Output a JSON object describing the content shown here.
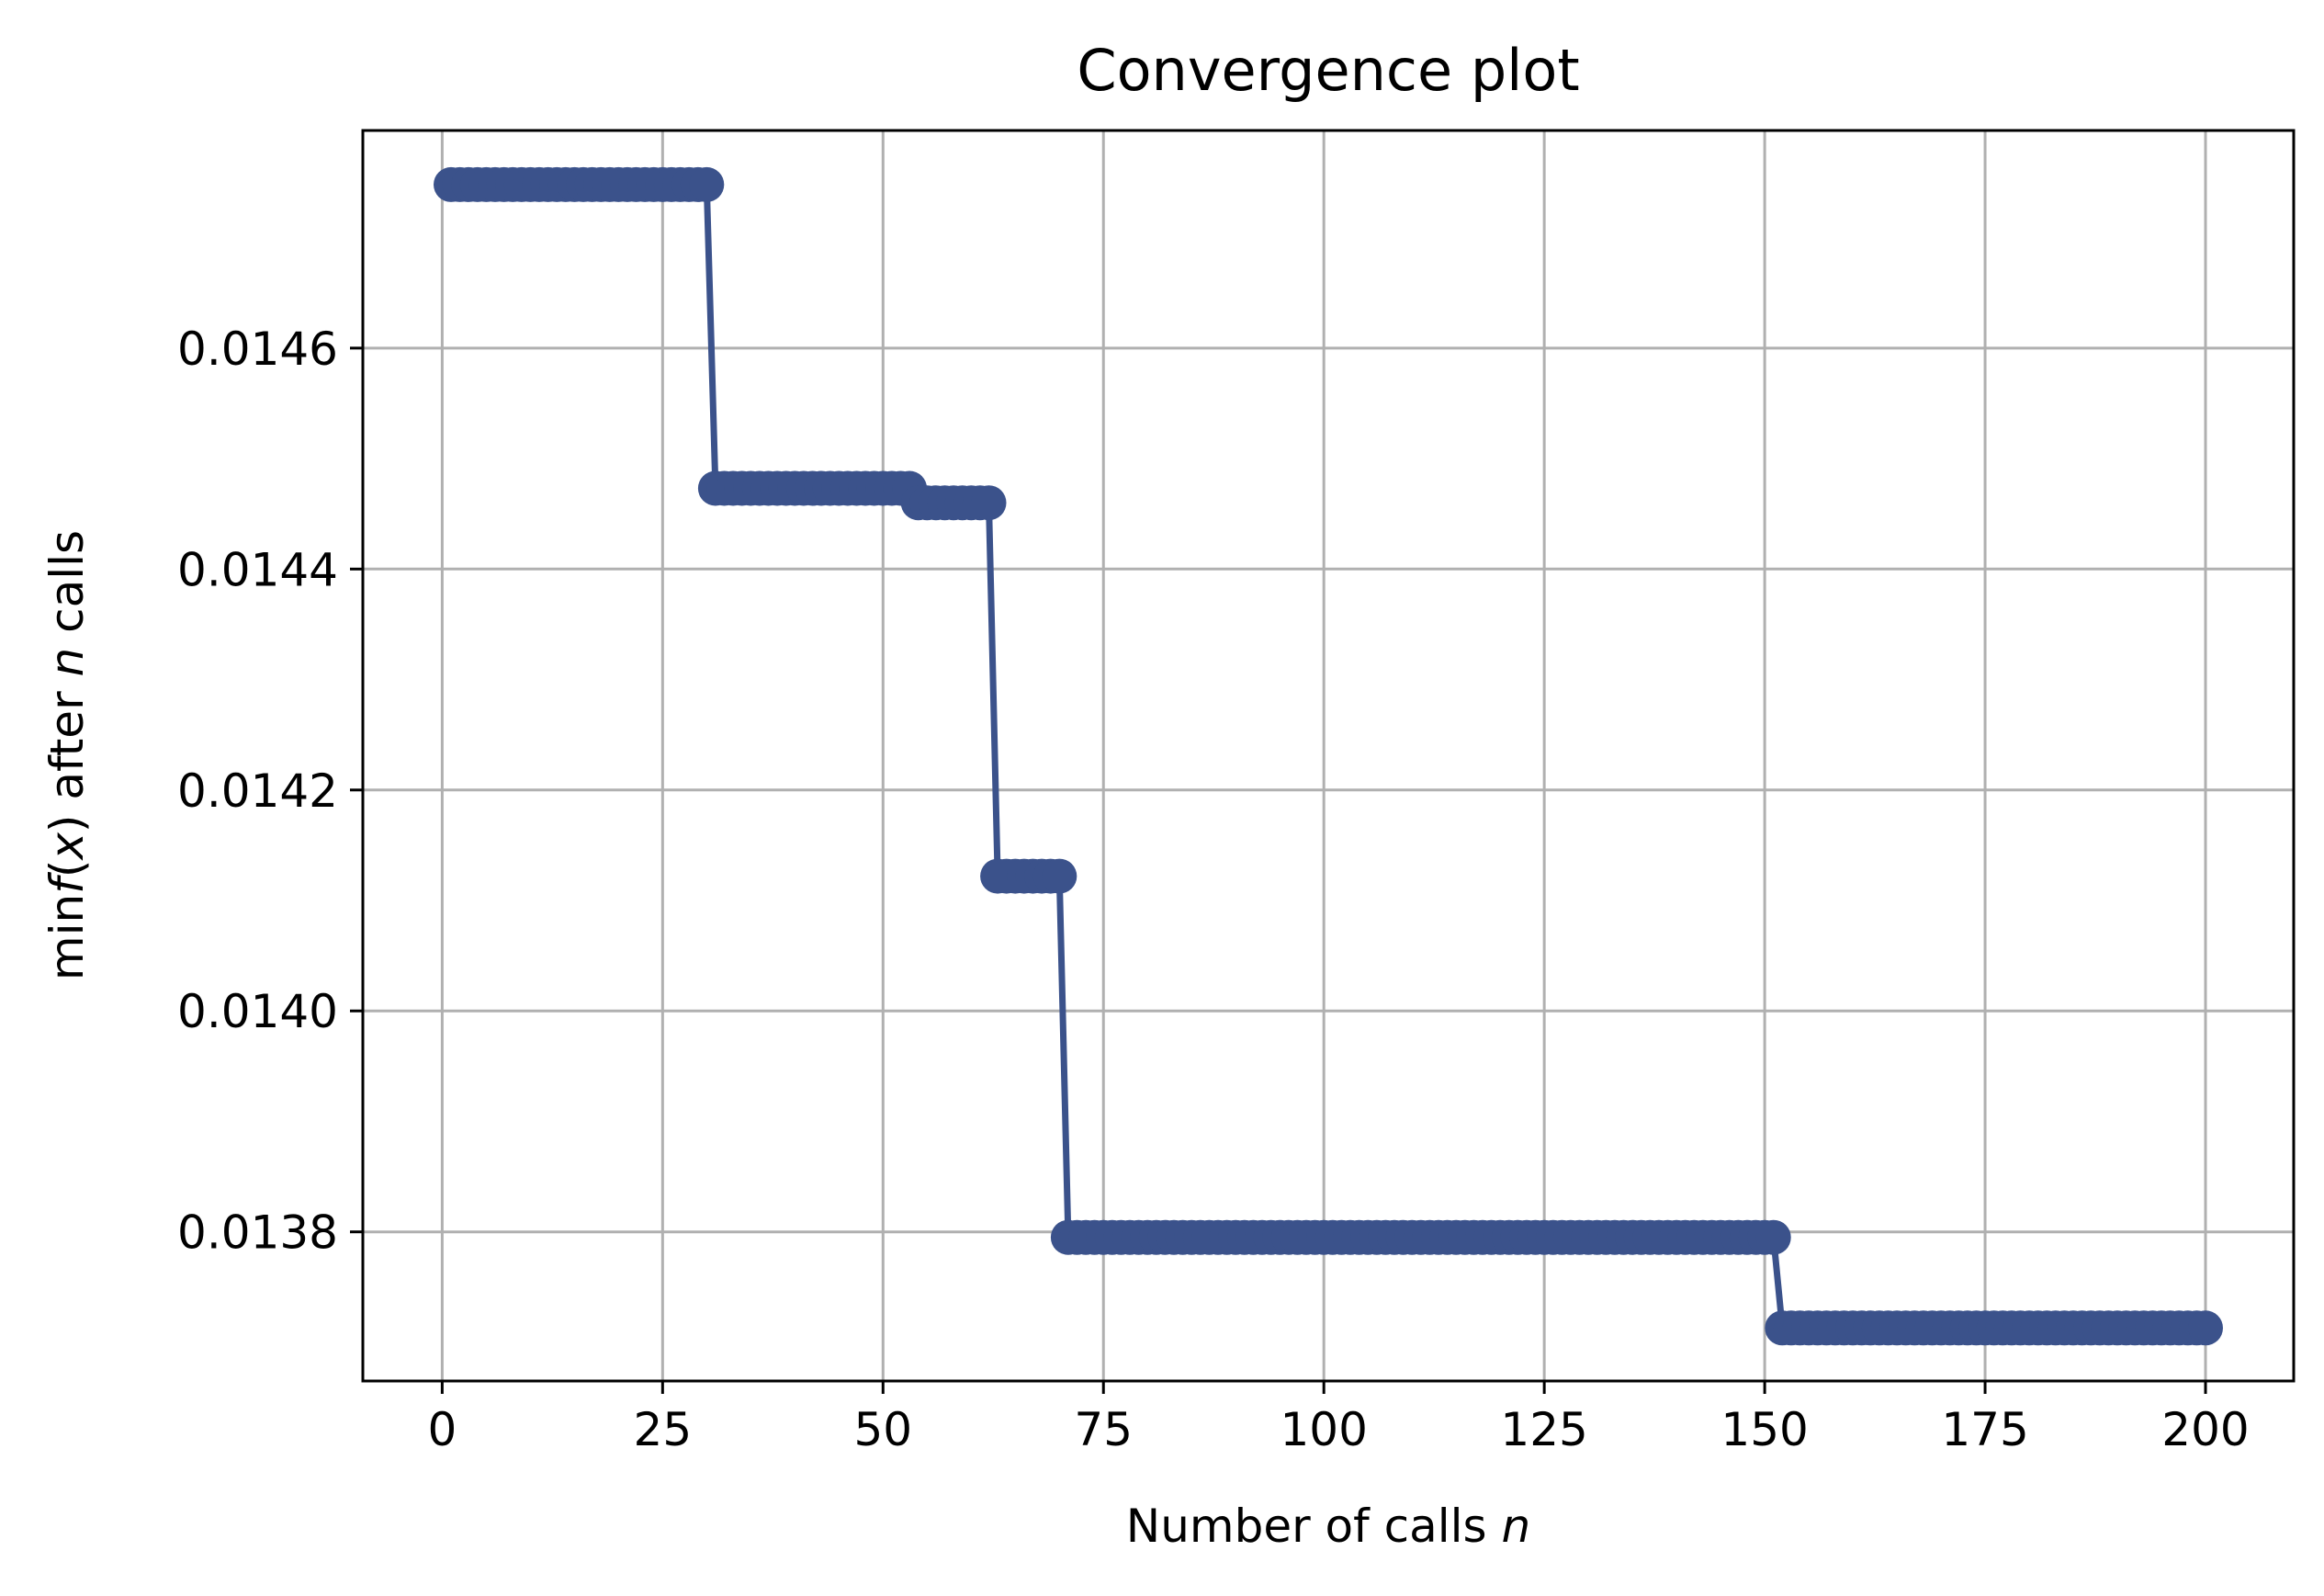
{
  "chart_data": {
    "type": "line",
    "title": "Convergence plot",
    "xlabel_text": "Number of calls ",
    "xlabel_italic": "n",
    "ylabel_parts": {
      "pre": "min",
      "f": "f",
      "open": "(",
      "x": "x",
      "close": ") after ",
      "n": "n",
      "post": " calls"
    },
    "xlim": [
      -9,
      210
    ],
    "ylim": [
      0.013665,
      0.014797
    ],
    "xticks": [
      0,
      25,
      50,
      75,
      100,
      125,
      150,
      175,
      200
    ],
    "xtick_labels": [
      "0",
      "25",
      "50",
      "75",
      "100",
      "125",
      "150",
      "175",
      "200"
    ],
    "yticks": [
      0.0138,
      0.014,
      0.0142,
      0.0144,
      0.0146
    ],
    "ytick_labels": [
      "0.0138",
      "0.0140",
      "0.0142",
      "0.0144",
      "0.0146"
    ],
    "grid": true,
    "marker": "circle",
    "series": [
      {
        "name": "convergence",
        "color": "#3b528b",
        "steps": [
          {
            "from": 1,
            "to": 30,
            "value": 0.014748
          },
          {
            "from": 31,
            "to": 53,
            "value": 0.014473
          },
          {
            "from": 54,
            "to": 62,
            "value": 0.01446
          },
          {
            "from": 63,
            "to": 70,
            "value": 0.014122
          },
          {
            "from": 71,
            "to": 151,
            "value": 0.013795
          },
          {
            "from": 152,
            "to": 200,
            "value": 0.013713
          }
        ]
      }
    ]
  }
}
